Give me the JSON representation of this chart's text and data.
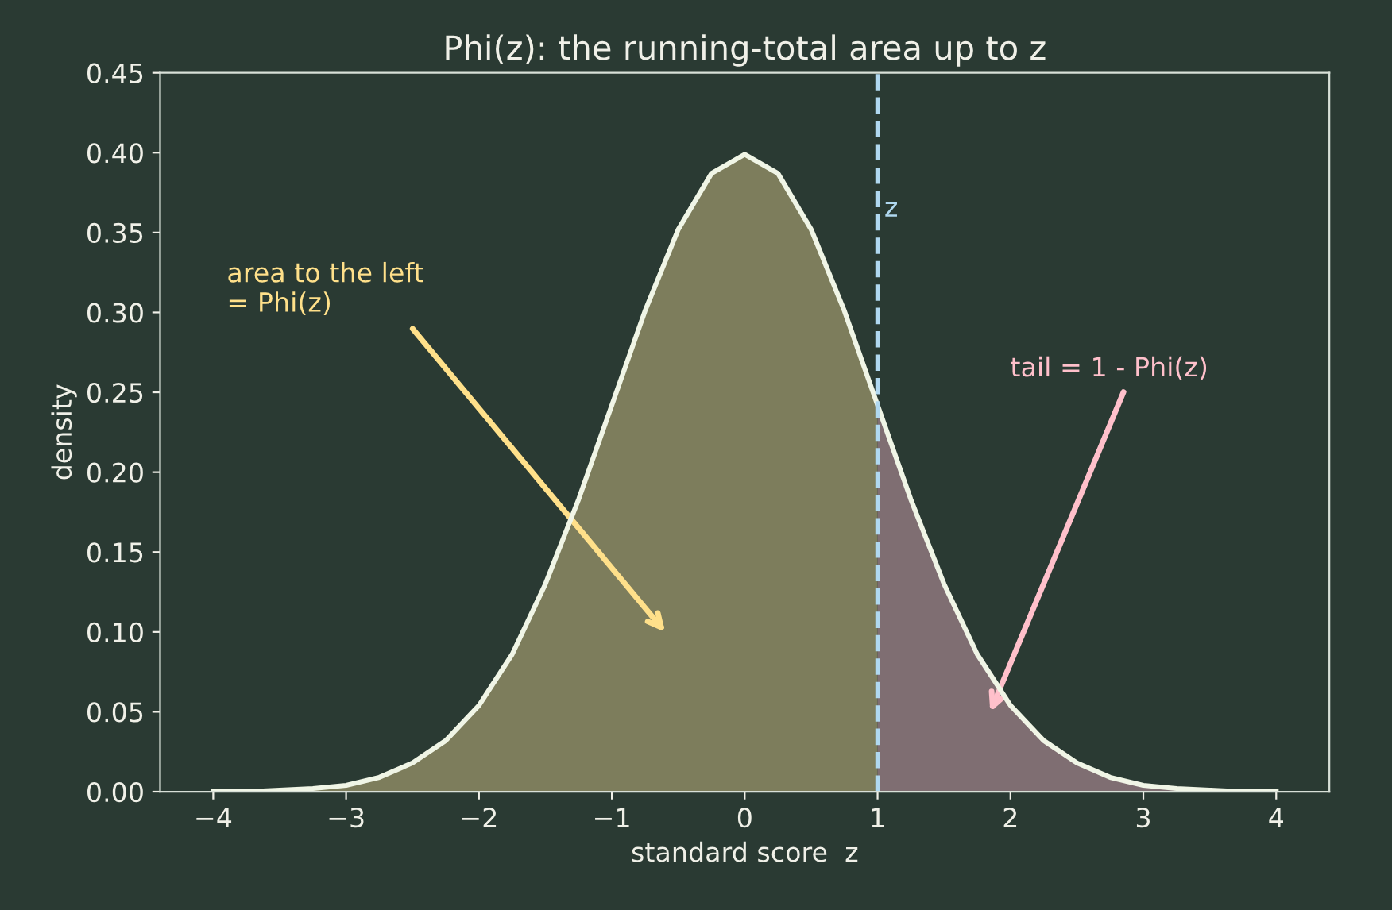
{
  "chart_data": {
    "type": "line",
    "title": "Phi(z): the running-total area up to z",
    "xlabel": "standard score  z",
    "ylabel": "density",
    "series": [
      {
        "type": "area",
        "color": "#7d7d5c",
        "x": [
          -4,
          -3.75,
          -3.5,
          -3.25,
          -3,
          -2.75,
          -2.5,
          -2.25,
          -2,
          -1.75,
          -1.5,
          -1.25,
          -1,
          -0.75,
          -0.5,
          -0.25,
          0,
          0.25,
          0.5,
          0.75,
          1
        ],
        "values": [
          0.0,
          0.0,
          0.001,
          0.002,
          0.004,
          0.009,
          0.018,
          0.032,
          0.054,
          0.086,
          0.13,
          0.183,
          0.242,
          0.301,
          0.352,
          0.387,
          0.399,
          0.387,
          0.352,
          0.301,
          0.242
        ]
      },
      {
        "type": "area",
        "color": "#7f6e72",
        "x": [
          1,
          1.25,
          1.5,
          1.75,
          2,
          2.25,
          2.5,
          2.75,
          3,
          3.25,
          3.5,
          3.75,
          4
        ],
        "values": [
          0.242,
          0.183,
          0.13,
          0.086,
          0.054,
          0.032,
          0.018,
          0.009,
          0.004,
          0.002,
          0.001,
          0.0,
          0.0
        ]
      },
      {
        "color": "#f0f5e6",
        "x": [
          -4,
          -3.75,
          -3.5,
          -3.25,
          -3,
          -2.75,
          -2.5,
          -2.25,
          -2,
          -1.75,
          -1.5,
          -1.25,
          -1,
          -0.75,
          -0.5,
          -0.25,
          0,
          0.25,
          0.5,
          0.75,
          1,
          1.25,
          1.5,
          1.75,
          2,
          2.25,
          2.5,
          2.75,
          3,
          3.25,
          3.5,
          3.75,
          4
        ],
        "values": [
          0.0,
          0.0,
          0.001,
          0.002,
          0.004,
          0.009,
          0.018,
          0.032,
          0.054,
          0.086,
          0.13,
          0.183,
          0.242,
          0.301,
          0.352,
          0.387,
          0.399,
          0.387,
          0.352,
          0.301,
          0.242,
          0.183,
          0.13,
          0.086,
          0.054,
          0.032,
          0.018,
          0.009,
          0.004,
          0.002,
          0.001,
          0.0,
          0.0
        ]
      }
    ],
    "ref_lines": [
      {
        "axis": "x",
        "value": 1,
        "label": "z",
        "color": "#b0d8f0",
        "line_style": "dashed"
      }
    ],
    "annotations": [
      "area to the left\n= Phi(z)",
      "tail = 1 - Phi(z)"
    ],
    "xlim": [
      -4.4,
      4.4
    ],
    "ylim": [
      0,
      0.45
    ],
    "xticks": [
      {
        "value": -4,
        "label": "−4"
      },
      {
        "value": -3,
        "label": "−3"
      },
      {
        "value": -2,
        "label": "−2"
      },
      {
        "value": -1,
        "label": "−1"
      },
      0,
      1,
      2,
      3,
      4
    ],
    "yticks": [
      {
        "value": 0,
        "label": "0.00"
      },
      {
        "value": 0.05,
        "label": "0.05"
      },
      {
        "value": 0.1,
        "label": "0.10"
      },
      {
        "value": 0.15,
        "label": "0.15"
      },
      {
        "value": 0.2,
        "label": "0.20"
      },
      {
        "value": 0.25,
        "label": "0.25"
      },
      {
        "value": 0.3,
        "label": "0.30"
      },
      {
        "value": 0.35,
        "label": "0.35"
      },
      {
        "value": 0.4,
        "label": "0.40"
      },
      {
        "value": 0.45,
        "label": "0.45"
      }
    ],
    "grid": false,
    "legend": false,
    "marker": "none",
    "line_style": "solid"
  }
}
